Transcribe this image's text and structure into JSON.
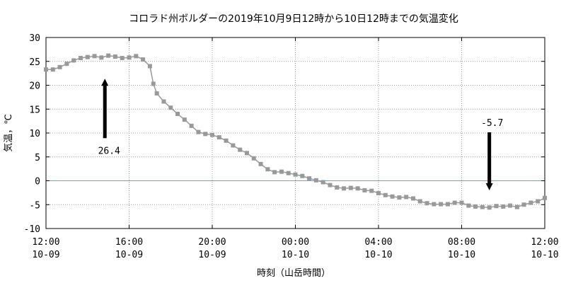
{
  "chart_data": {
    "type": "line",
    "title": "コロラド州ボルダーの2019年10月9日12時から10日12時までの気温変化",
    "xlabel": "時刻（山岳時間）",
    "ylabel": "気温，℃",
    "xlim": [
      "2019-10-09 12:00",
      "2019-10-10 12:00"
    ],
    "ylim": [
      -10,
      30
    ],
    "y_ticks": [
      -10,
      -5,
      0,
      5,
      10,
      15,
      20,
      25,
      30
    ],
    "x_ticks": [
      {
        "time": "2019-10-09 12:00",
        "line1": "12:00",
        "line2": "10-09"
      },
      {
        "time": "2019-10-09 16:00",
        "line1": "16:00",
        "line2": "10-09"
      },
      {
        "time": "2019-10-09 20:00",
        "line1": "20:00",
        "line2": "10-09"
      },
      {
        "time": "2019-10-10 00:00",
        "line1": "00:00",
        "line2": "10-10"
      },
      {
        "time": "2019-10-10 04:00",
        "line1": "04:00",
        "line2": "10-10"
      },
      {
        "time": "2019-10-10 08:00",
        "line1": "08:00",
        "line2": "10-10"
      },
      {
        "time": "2019-10-10 12:00",
        "line1": "12:00",
        "line2": "10-10"
      }
    ],
    "grid": true,
    "reference_line": {
      "y": 0,
      "color": "#5aaed6"
    },
    "series": [
      {
        "color": "#999999",
        "points": [
          [
            "2019-10-09 12:00",
            23.3
          ],
          [
            "2019-10-09 12:20",
            23.3
          ],
          [
            "2019-10-09 12:40",
            23.8
          ],
          [
            "2019-10-09 13:00",
            24.5
          ],
          [
            "2019-10-09 13:20",
            25.2
          ],
          [
            "2019-10-09 13:40",
            25.7
          ],
          [
            "2019-10-09 14:00",
            25.9
          ],
          [
            "2019-10-09 14:20",
            26.1
          ],
          [
            "2019-10-09 14:40",
            25.8
          ],
          [
            "2019-10-09 15:00",
            26.2
          ],
          [
            "2019-10-09 15:20",
            26.0
          ],
          [
            "2019-10-09 15:40",
            25.7
          ],
          [
            "2019-10-09 16:00",
            25.8
          ],
          [
            "2019-10-09 16:20",
            26.1
          ],
          [
            "2019-10-09 16:40",
            25.4
          ],
          [
            "2019-10-09 17:00",
            24.0
          ],
          [
            "2019-10-09 17:10",
            20.3
          ],
          [
            "2019-10-09 17:20",
            18.3
          ],
          [
            "2019-10-09 17:40",
            16.6
          ],
          [
            "2019-10-09 18:00",
            15.3
          ],
          [
            "2019-10-09 18:20",
            14.0
          ],
          [
            "2019-10-09 18:40",
            12.8
          ],
          [
            "2019-10-09 19:00",
            11.5
          ],
          [
            "2019-10-09 19:20",
            10.2
          ],
          [
            "2019-10-09 19:40",
            9.8
          ],
          [
            "2019-10-09 20:00",
            9.6
          ],
          [
            "2019-10-09 20:20",
            9.1
          ],
          [
            "2019-10-09 20:40",
            8.4
          ],
          [
            "2019-10-09 21:00",
            7.4
          ],
          [
            "2019-10-09 21:20",
            6.5
          ],
          [
            "2019-10-09 21:40",
            5.8
          ],
          [
            "2019-10-09 22:00",
            4.7
          ],
          [
            "2019-10-09 22:20",
            3.5
          ],
          [
            "2019-10-09 22:40",
            2.4
          ],
          [
            "2019-10-09 23:00",
            1.8
          ],
          [
            "2019-10-09 23:20",
            1.9
          ],
          [
            "2019-10-09 23:40",
            1.6
          ],
          [
            "2019-10-10 00:00",
            1.3
          ],
          [
            "2019-10-10 00:20",
            1.0
          ],
          [
            "2019-10-10 00:40",
            0.5
          ],
          [
            "2019-10-10 01:00",
            0.1
          ],
          [
            "2019-10-10 01:20",
            -0.3
          ],
          [
            "2019-10-10 01:40",
            -0.9
          ],
          [
            "2019-10-10 02:00",
            -1.4
          ],
          [
            "2019-10-10 02:20",
            -1.6
          ],
          [
            "2019-10-10 02:40",
            -1.5
          ],
          [
            "2019-10-10 03:00",
            -1.6
          ],
          [
            "2019-10-10 03:20",
            -2.0
          ],
          [
            "2019-10-10 03:40",
            -2.1
          ],
          [
            "2019-10-10 04:00",
            -2.6
          ],
          [
            "2019-10-10 04:20",
            -3.0
          ],
          [
            "2019-10-10 04:40",
            -3.3
          ],
          [
            "2019-10-10 05:00",
            -3.5
          ],
          [
            "2019-10-10 05:20",
            -3.4
          ],
          [
            "2019-10-10 05:40",
            -3.7
          ],
          [
            "2019-10-10 06:00",
            -4.3
          ],
          [
            "2019-10-10 06:20",
            -4.7
          ],
          [
            "2019-10-10 06:40",
            -4.9
          ],
          [
            "2019-10-10 07:00",
            -4.9
          ],
          [
            "2019-10-10 07:20",
            -4.9
          ],
          [
            "2019-10-10 07:40",
            -4.6
          ],
          [
            "2019-10-10 08:00",
            -4.6
          ],
          [
            "2019-10-10 08:20",
            -5.2
          ],
          [
            "2019-10-10 08:40",
            -5.4
          ],
          [
            "2019-10-10 09:00",
            -5.5
          ],
          [
            "2019-10-10 09:20",
            -5.6
          ],
          [
            "2019-10-10 09:40",
            -5.3
          ],
          [
            "2019-10-10 10:00",
            -5.4
          ],
          [
            "2019-10-10 10:20",
            -5.2
          ],
          [
            "2019-10-10 10:40",
            -5.5
          ],
          [
            "2019-10-10 11:00",
            -5.0
          ],
          [
            "2019-10-10 11:20",
            -4.6
          ],
          [
            "2019-10-10 11:40",
            -4.3
          ],
          [
            "2019-10-10 12:00",
            -3.6
          ]
        ]
      }
    ],
    "annotations": [
      {
        "text": "26.4",
        "time": "2019-10-09 14:50",
        "value": 26.4,
        "arrow": "up"
      },
      {
        "text": "-5.7",
        "time": "2019-10-10 09:20",
        "value": -5.7,
        "arrow": "down"
      }
    ]
  }
}
